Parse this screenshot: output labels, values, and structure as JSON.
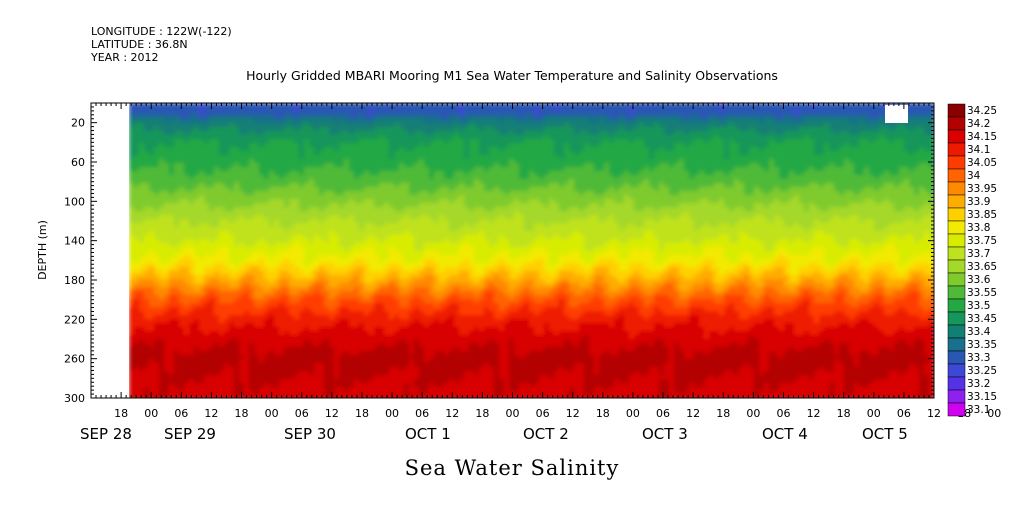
{
  "header": {
    "longitude": "LONGITUDE : 122W(-122)",
    "latitude": "LATITUDE : 36.8N",
    "year": "YEAR : 2012"
  },
  "chart_data": {
    "type": "heatmap",
    "title": "Hourly Gridded MBARI Mooring M1 Sea Water Temperature and Salinity Observations",
    "subtitle": "Sea Water Salinity",
    "ylabel": "DEPTH (m)",
    "xlabel": "",
    "y_reversed": true,
    "ylim": [
      0,
      300
    ],
    "yticks": [
      20,
      60,
      100,
      140,
      180,
      220,
      260,
      300
    ],
    "x_range_hours": [
      -12,
      156
    ],
    "data_start_hour": 0,
    "x_hour_ticks": [
      "18",
      "00",
      "06",
      "12",
      "18",
      "00",
      "06",
      "12",
      "18",
      "00",
      "06",
      "12",
      "18",
      "00",
      "06",
      "12",
      "18",
      "00",
      "06",
      "12",
      "18",
      "00",
      "06",
      "12",
      "18",
      "00",
      "06",
      "12",
      "18",
      "00",
      "06",
      "12"
    ],
    "x_date_labels": [
      "SEP 28",
      "SEP 29",
      "SEP 30",
      "OCT 1",
      "OCT 2",
      "OCT 3",
      "OCT 4",
      "OCT 5"
    ],
    "salinity_profile": [
      {
        "depth": 10,
        "salinity": 33.32
      },
      {
        "depth": 20,
        "salinity": 33.42
      },
      {
        "depth": 40,
        "salinity": 33.5
      },
      {
        "depth": 60,
        "salinity": 33.53
      },
      {
        "depth": 80,
        "salinity": 33.58
      },
      {
        "depth": 100,
        "salinity": 33.64
      },
      {
        "depth": 120,
        "salinity": 33.7
      },
      {
        "depth": 140,
        "salinity": 33.75
      },
      {
        "depth": 160,
        "salinity": 33.82
      },
      {
        "depth": 180,
        "salinity": 33.93
      },
      {
        "depth": 200,
        "salinity": 34.05
      },
      {
        "depth": 220,
        "salinity": 34.13
      },
      {
        "depth": 240,
        "salinity": 34.18
      },
      {
        "depth": 260,
        "salinity": 34.22
      },
      {
        "depth": 280,
        "salinity": 34.2
      },
      {
        "depth": 300,
        "salinity": 34.18
      }
    ],
    "colorbar": {
      "levels": [
        "34.25",
        "34.2",
        "34.15",
        "34.1",
        "34.05",
        "34",
        "33.95",
        "33.9",
        "33.85",
        "33.8",
        "33.75",
        "33.7",
        "33.65",
        "33.6",
        "33.55",
        "33.5",
        "33.45",
        "33.4",
        "33.35",
        "33.3",
        "33.25",
        "33.2",
        "33.15",
        "33.1"
      ],
      "colors": [
        "#8a0000",
        "#b30000",
        "#d80000",
        "#ee1a00",
        "#ff3c00",
        "#ff6400",
        "#ff8a00",
        "#ffac00",
        "#ffd000",
        "#f2ea00",
        "#d8ec00",
        "#bfe21e",
        "#a4d82a",
        "#7fcb2e",
        "#4fba38",
        "#24a844",
        "#15965a",
        "#127f74",
        "#17708c",
        "#2a56b4",
        "#3e48d6",
        "#5532e8",
        "#8e20f0",
        "#d000f0"
      ]
    }
  }
}
